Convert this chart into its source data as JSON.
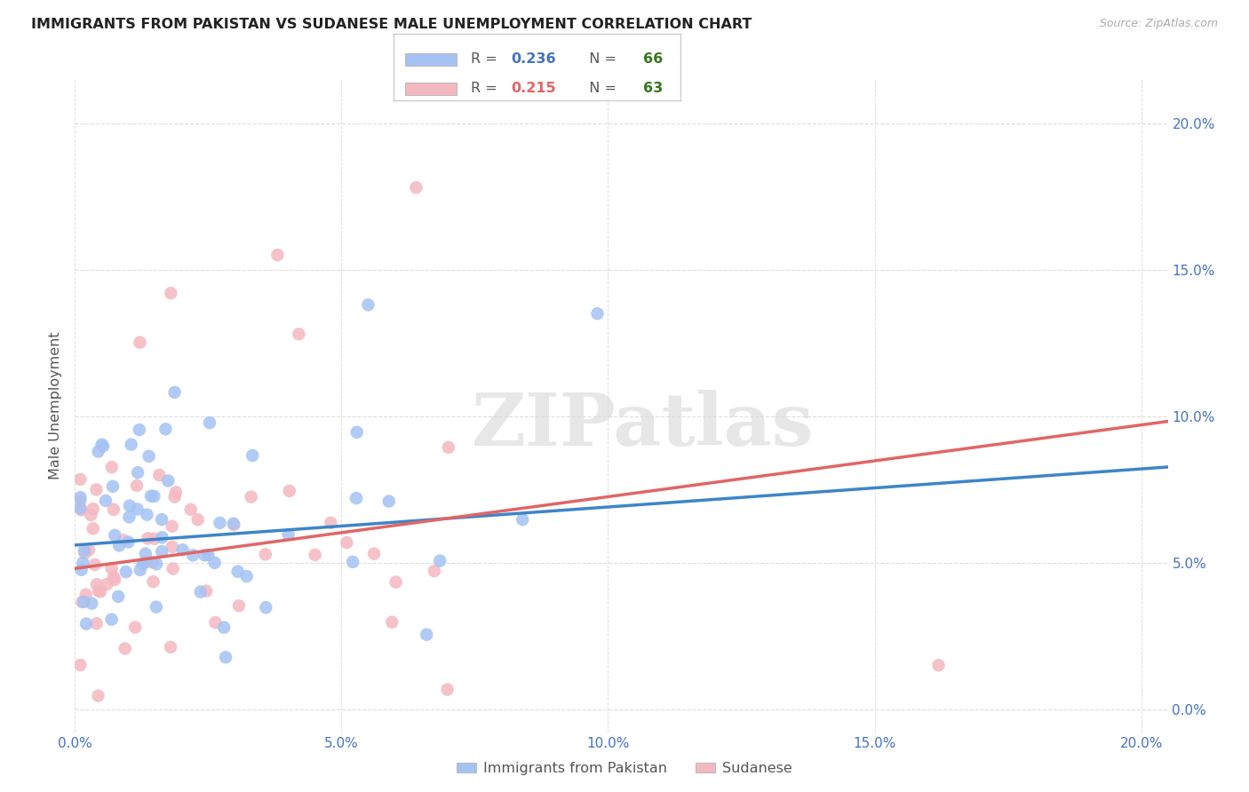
{
  "title": "IMMIGRANTS FROM PAKISTAN VS SUDANESE MALE UNEMPLOYMENT CORRELATION CHART",
  "source": "Source: ZipAtlas.com",
  "ylabel": "Male Unemployment",
  "legend_label1": "Immigrants from Pakistan",
  "legend_label2": "Sudanese",
  "r1": 0.236,
  "n1": 66,
  "r2": 0.215,
  "n2": 63,
  "color1": "#a4c2f4",
  "color2": "#f4b8c1",
  "trendline1_color": "#3d85c8",
  "trendline2_color": "#e06666",
  "xmin": 0.0,
  "xmax": 0.205,
  "ymin": -0.008,
  "ymax": 0.215,
  "xtick_vals": [
    0.0,
    0.05,
    0.1,
    0.15,
    0.2
  ],
  "ytick_vals": [
    0.0,
    0.05,
    0.1,
    0.15,
    0.2
  ],
  "background_color": "#ffffff",
  "watermark": "ZIPatlas",
  "title_color": "#222222",
  "source_color": "#aaaaaa",
  "tick_color": "#4472c4",
  "legend_r_color": "#4472c4",
  "legend_n_color": "#38761d",
  "trendline1_y0": 0.056,
  "trendline1_y1": 0.082,
  "trendline2_y0": 0.048,
  "trendline2_y1": 0.097
}
